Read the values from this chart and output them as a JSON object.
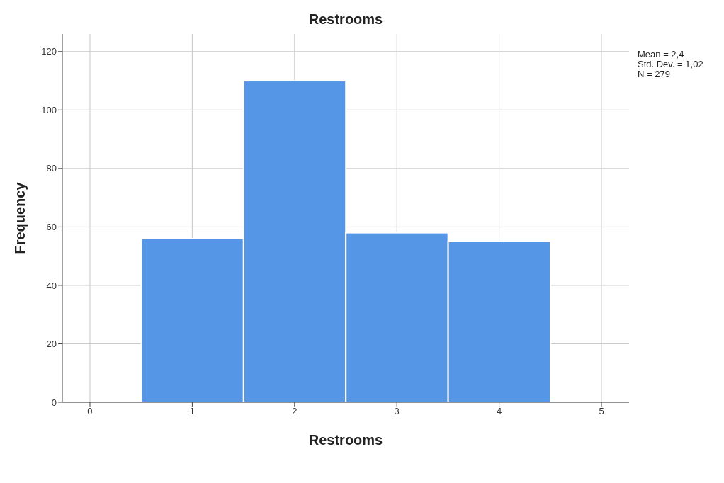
{
  "chart_data": {
    "type": "histogram",
    "title": "Restrooms",
    "xlabel": "Restrooms",
    "ylabel": "Frequency",
    "bins": [
      0.5,
      1.5,
      2.5,
      3.5,
      4.5
    ],
    "values": [
      56,
      110,
      58,
      55
    ],
    "color": "#5596e6",
    "xlim": [
      -0.27,
      5.27
    ],
    "xticks": [
      0,
      1,
      2,
      3,
      4,
      5
    ],
    "ylim": [
      0,
      126
    ],
    "yticks": [
      0,
      20,
      40,
      60,
      80,
      100,
      120
    ],
    "grid": true,
    "annotations": [
      "Mean = 2,4",
      "Std. Dev. = 1,02",
      "N = 279"
    ]
  }
}
